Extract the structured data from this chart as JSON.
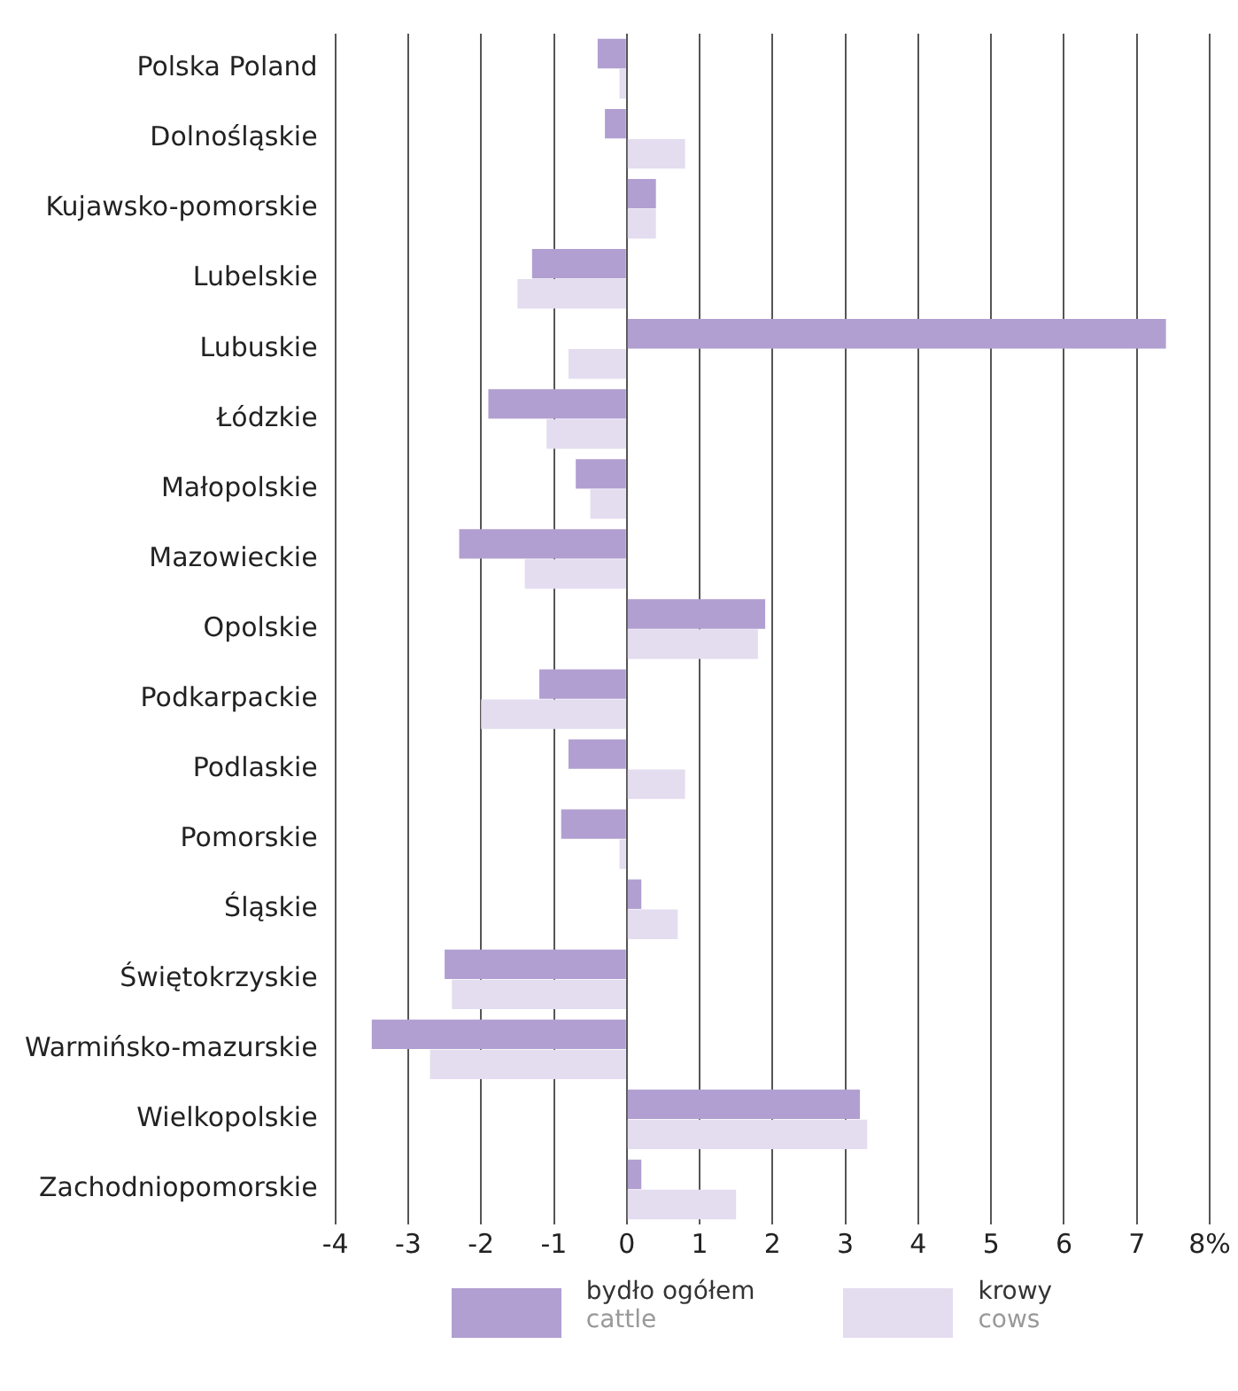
{
  "chart_data": {
    "type": "bar",
    "orientation": "horizontal",
    "categories": [
      "Polska Poland",
      "Dolnośląskie",
      "Kujawsko-pomorskie",
      "Lubelskie",
      "Lubuskie",
      "Łódzkie",
      "Małopolskie",
      "Mazowieckie",
      "Opolskie",
      "Podkarpackie",
      "Podlaskie",
      "Pomorskie",
      "Śląskie",
      "Świętokrzyskie",
      "Warmińsko-mazurskie",
      "Wielkopolskie",
      "Zachodniopomorskie"
    ],
    "series": [
      {
        "name": "bydło ogółem\ncattle",
        "color": "#b19fd1",
        "values": [
          -0.4,
          -0.3,
          0.4,
          -1.3,
          7.4,
          -1.9,
          -0.7,
          -2.3,
          1.9,
          -1.2,
          -0.8,
          -0.9,
          0.2,
          -2.5,
          -3.5,
          3.2,
          0.2
        ]
      },
      {
        "name": "krowy\ncows",
        "color": "#e4dcef",
        "values": [
          -0.1,
          0.8,
          0.4,
          -1.5,
          -0.8,
          -1.1,
          -0.5,
          -1.4,
          1.8,
          -2.0,
          0.8,
          -0.1,
          0.7,
          -2.4,
          -2.7,
          3.3,
          1.5
        ]
      }
    ],
    "xlim": [
      -4,
      8
    ],
    "xticks": [
      -4,
      -3,
      -2,
      -1,
      0,
      1,
      2,
      3,
      4,
      5,
      6,
      7,
      {
        "value": 8,
        "label": "8%"
      }
    ],
    "grid": "x",
    "legend": "bottom"
  }
}
